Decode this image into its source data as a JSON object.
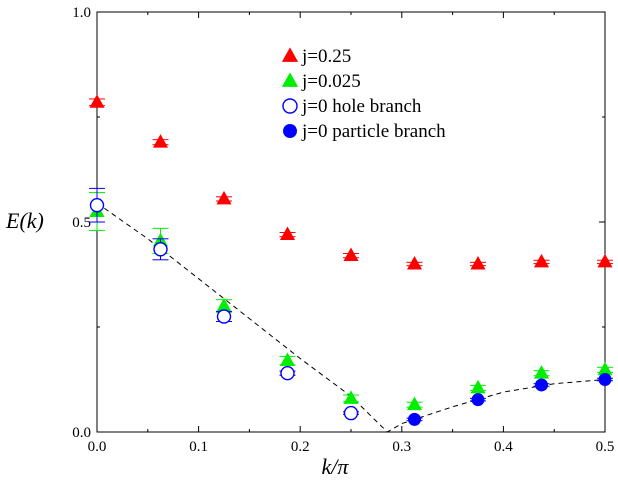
{
  "chart_data": {
    "type": "scatter",
    "xlabel": "k/π",
    "ylabel": "E(k)",
    "xlim": [
      0,
      0.5
    ],
    "ylim": [
      0,
      1.0
    ],
    "xticks": [
      0.0,
      0.1,
      0.2,
      0.3,
      0.4,
      0.5
    ],
    "xtick_labels": [
      "0.0",
      "0.1",
      "0.2",
      "0.3",
      "0.4",
      "0.5"
    ],
    "yticks": [
      0.0,
      0.5,
      1.0
    ],
    "ytick_labels": [
      "0.0",
      "0.5",
      "1.0"
    ],
    "grid": false,
    "legend_position": "top-center",
    "series": [
      {
        "name": "j=0.25",
        "marker": "triangle-filled",
        "color": "#ff0000",
        "x": [
          0.0,
          0.0625,
          0.125,
          0.1875,
          0.25,
          0.3125,
          0.375,
          0.4375,
          0.5
        ],
        "y": [
          0.785,
          0.69,
          0.555,
          0.47,
          0.42,
          0.4,
          0.4,
          0.405,
          0.405
        ],
        "err": [
          0.008,
          0.006,
          0.005,
          0.005,
          0.005,
          0.004,
          0.004,
          0.004,
          0.004
        ]
      },
      {
        "name": "j=0.025",
        "marker": "triangle-filled",
        "color": "#00ee00",
        "x": [
          0.0,
          0.0625,
          0.125,
          0.1875,
          0.25,
          0.3125,
          0.375,
          0.4375,
          0.5
        ],
        "y": [
          0.525,
          0.455,
          0.3,
          0.17,
          0.08,
          0.065,
          0.105,
          0.14,
          0.148
        ],
        "err": [
          0.045,
          0.03,
          0.015,
          0.01,
          0.008,
          0.006,
          0.006,
          0.006,
          0.006
        ]
      },
      {
        "name": "j=0 hole branch",
        "marker": "circle-open",
        "color": "#0000ff",
        "x": [
          0.0,
          0.0625,
          0.125,
          0.1875,
          0.25
        ],
        "y": [
          0.54,
          0.435,
          0.275,
          0.14,
          0.045
        ],
        "err": [
          0.04,
          0.025,
          0.012,
          0.005,
          0.003
        ]
      },
      {
        "name": "j=0 particle branch",
        "marker": "circle-filled",
        "color": "#0000ff",
        "x": [
          0.3125,
          0.375,
          0.4375,
          0.5
        ],
        "y": [
          0.03,
          0.077,
          0.112,
          0.125
        ],
        "err": [
          0.003,
          0.003,
          0.003,
          0.003
        ]
      }
    ],
    "curves": [
      {
        "style": "dashed",
        "color": "#000000",
        "x": [
          0.0,
          0.05,
          0.1,
          0.15,
          0.2,
          0.25,
          0.2857,
          0.3,
          0.35,
          0.4,
          0.45,
          0.5
        ],
        "y": [
          0.545,
          0.46,
          0.365,
          0.27,
          0.175,
          0.085,
          0.0,
          0.02,
          0.06,
          0.095,
          0.115,
          0.125
        ]
      }
    ]
  }
}
